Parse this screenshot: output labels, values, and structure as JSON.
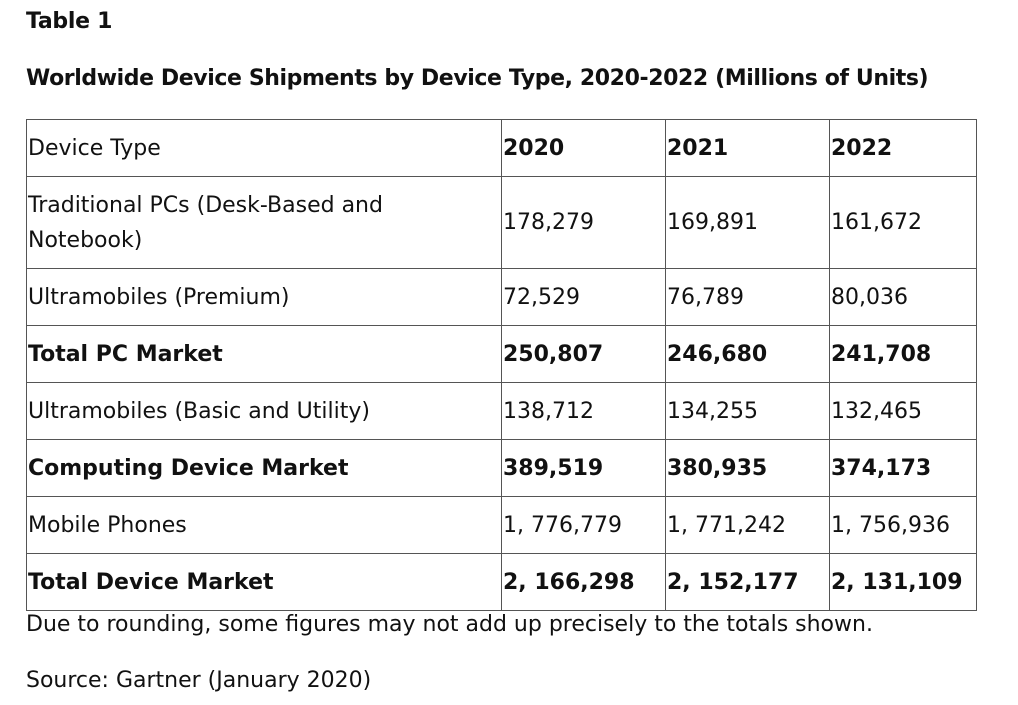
{
  "document": {
    "label": "Table 1",
    "title": "Worldwide Device Shipments by Device Type, 2020-2022 (Millions of Units)",
    "footnote": "Due to rounding, some figures may not add up precisely to the totals shown.",
    "source": "Source: Gartner (January 2020)"
  },
  "table": {
    "header": [
      "Device Type",
      "2020",
      "2021",
      "2022"
    ],
    "rows": [
      {
        "label": "Traditional PCs (Desk-Based and Notebook)",
        "values": [
          "178,279",
          "169,891",
          "161,672"
        ],
        "bold": false
      },
      {
        "label": "Ultramobiles (Premium)",
        "values": [
          "72,529",
          "76,789",
          "80,036"
        ],
        "bold": false
      },
      {
        "label": "Total PC Market",
        "values": [
          "250,807",
          "246,680",
          "241,708"
        ],
        "bold": true
      },
      {
        "label": "Ultramobiles (Basic and Utility)",
        "values": [
          "138,712",
          "134,255",
          "132,465"
        ],
        "bold": false
      },
      {
        "label": "Computing Device Market",
        "values": [
          "389,519",
          "380,935",
          "374,173"
        ],
        "bold": true
      },
      {
        "label": "Mobile Phones",
        "values": [
          "1, 776,779",
          "1, 771,242",
          "1, 756,936"
        ],
        "bold": false
      },
      {
        "label": "Total Device Market",
        "values": [
          "2, 166,298",
          "2, 152,177",
          "2, 131,109"
        ],
        "bold": true
      }
    ]
  }
}
